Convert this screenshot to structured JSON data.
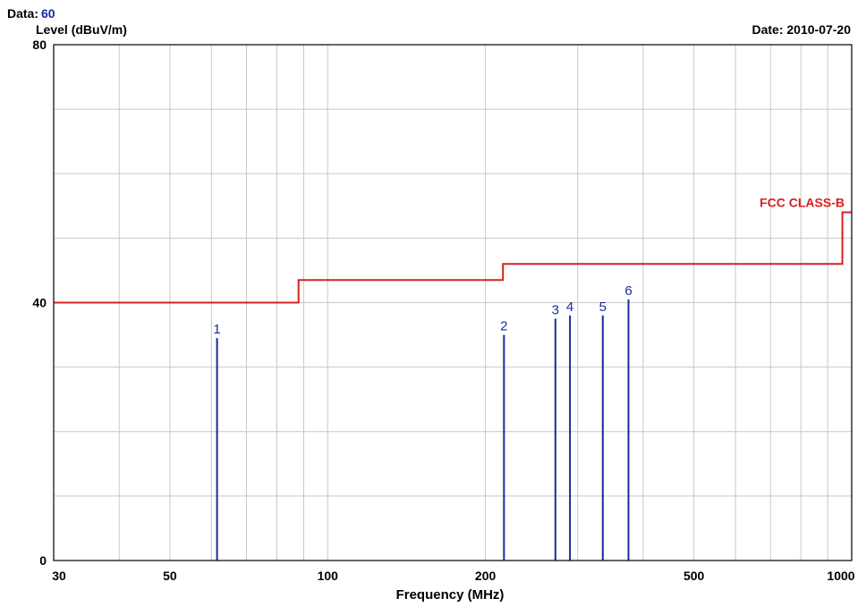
{
  "header": {
    "data_label": "Data:",
    "data_value": "60",
    "date_text": "Date: 2010-07-20"
  },
  "colors": {
    "limit": "#d62020",
    "marker": "#1b2a9e",
    "grid": "#c8c8c8",
    "axis": "#000000",
    "data_value": "#1b2a9e"
  },
  "chart_data": {
    "type": "line",
    "title": "",
    "xlabel": "Frequency (MHz)",
    "ylabel": "Level (dBuV/m)",
    "x_scale": "log",
    "xlim": [
      30,
      1000
    ],
    "ylim": [
      0,
      80
    ],
    "x_ticks": [
      30,
      50,
      100,
      200,
      500,
      1000
    ],
    "x_ticklabels": [
      "30",
      "50",
      "100",
      "200",
      "500",
      "1000"
    ],
    "y_ticks": [
      0,
      40,
      80
    ],
    "y_ticklabels": [
      "0",
      "40",
      "80"
    ],
    "grid": true,
    "series": [
      {
        "name": "FCC CLASS-B",
        "kind": "limit-step",
        "x": [
          30,
          88,
          88,
          216,
          216,
          960,
          960,
          1000
        ],
        "y": [
          40,
          40,
          43.5,
          43.5,
          46,
          46,
          54,
          54
        ]
      },
      {
        "kind": "markers",
        "labels": [
          "1",
          "2",
          "3",
          "4",
          "5",
          "6"
        ],
        "x": [
          61.5,
          217.0,
          272.0,
          290.0,
          335.0,
          375.0
        ],
        "y": [
          34.5,
          35.0,
          37.5,
          38.0,
          38.0,
          40.5
        ]
      }
    ]
  }
}
